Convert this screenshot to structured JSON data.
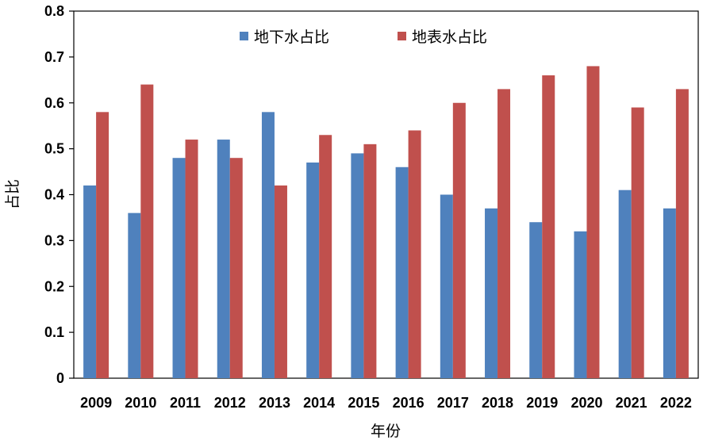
{
  "chart_data": {
    "type": "bar",
    "title": "",
    "xlabel": "年份",
    "ylabel": "占比",
    "categories": [
      "2009",
      "2010",
      "2011",
      "2012",
      "2013",
      "2014",
      "2015",
      "2016",
      "2017",
      "2018",
      "2019",
      "2020",
      "2021",
      "2022"
    ],
    "series": [
      {
        "name": "地下水占比",
        "color": "#4F81BD",
        "values": [
          0.42,
          0.36,
          0.48,
          0.52,
          0.58,
          0.47,
          0.49,
          0.46,
          0.4,
          0.37,
          0.34,
          0.32,
          0.41,
          0.37
        ]
      },
      {
        "name": "地表水占比",
        "color": "#C0504D",
        "values": [
          0.58,
          0.64,
          0.52,
          0.48,
          0.42,
          0.53,
          0.51,
          0.54,
          0.6,
          0.63,
          0.66,
          0.68,
          0.59,
          0.63
        ]
      }
    ],
    "ylim": [
      0,
      0.8
    ],
    "yticks": [
      "0",
      "0.1",
      "0.2",
      "0.3",
      "0.4",
      "0.5",
      "0.6",
      "0.7",
      "0.8"
    ],
    "grid": false,
    "legend_position": "top"
  }
}
